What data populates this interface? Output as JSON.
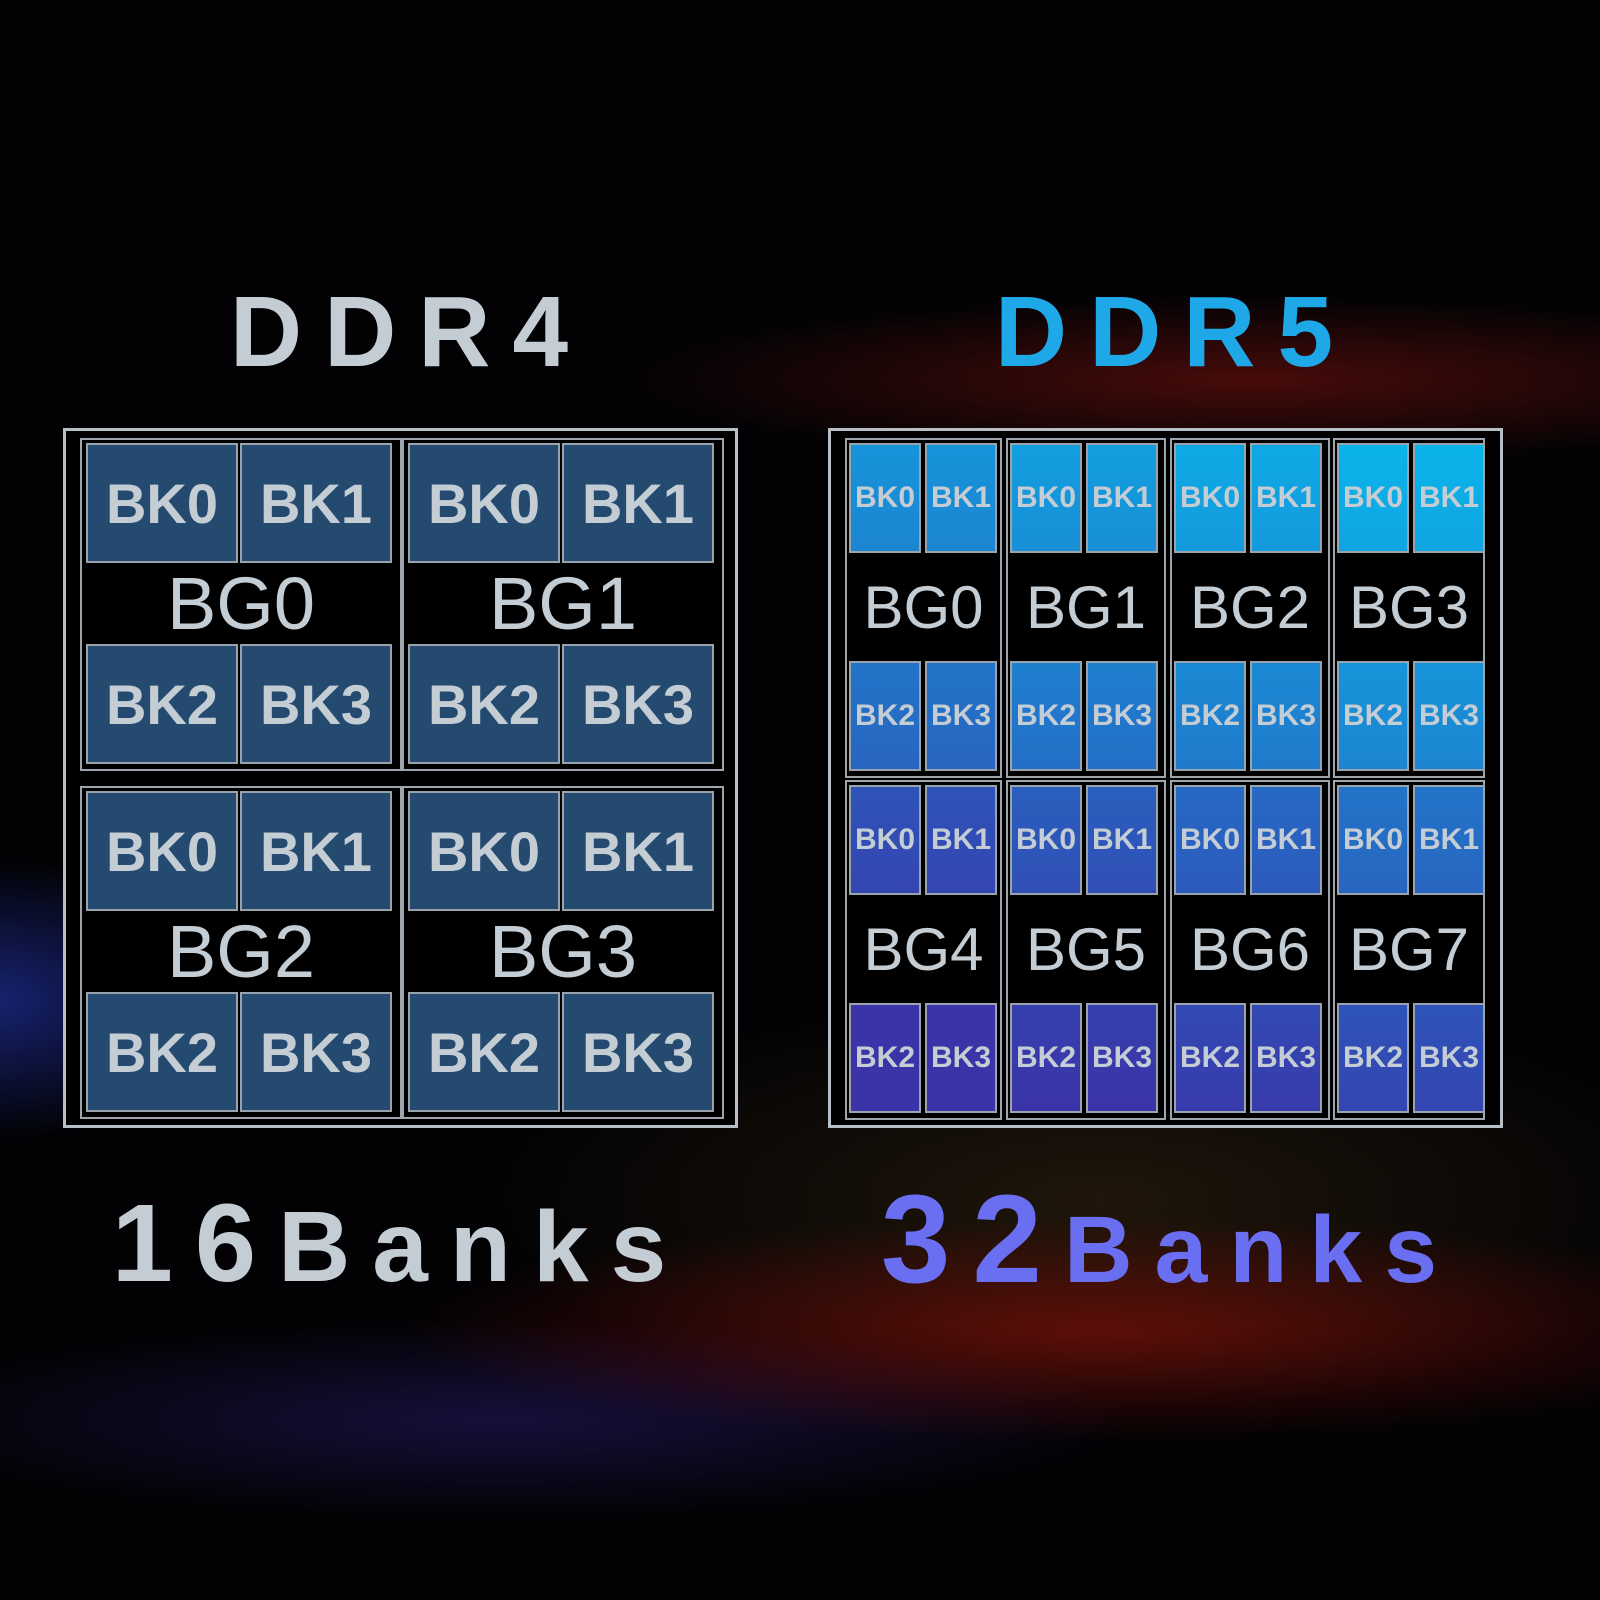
{
  "ddr4": {
    "title": "DDR4",
    "title_color": "#c4ccd4",
    "footer_number": "16",
    "footer_word": "Banks",
    "footer_color": "#c4ccd4",
    "bank_color": "#244a70",
    "groups": [
      {
        "label": "BG0",
        "banks": [
          "BK0",
          "BK1",
          "BK2",
          "BK3"
        ]
      },
      {
        "label": "BG1",
        "banks": [
          "BK0",
          "BK1",
          "BK2",
          "BK3"
        ]
      },
      {
        "label": "BG2",
        "banks": [
          "BK0",
          "BK1",
          "BK2",
          "BK3"
        ]
      },
      {
        "label": "BG3",
        "banks": [
          "BK0",
          "BK1",
          "BK2",
          "BK3"
        ]
      }
    ]
  },
  "ddr5": {
    "title": "DDR5",
    "title_color": "#1ea8e8",
    "footer_number": "32",
    "footer_word": "Banks",
    "footer_color": "#6a6ef0",
    "bank_gradient": [
      "#0ab4ea",
      "#3a34a8"
    ],
    "groups": [
      {
        "label": "BG0",
        "banks": [
          "BK0",
          "BK1",
          "BK2",
          "BK3"
        ]
      },
      {
        "label": "BG1",
        "banks": [
          "BK0",
          "BK1",
          "BK2",
          "BK3"
        ]
      },
      {
        "label": "BG2",
        "banks": [
          "BK0",
          "BK1",
          "BK2",
          "BK3"
        ]
      },
      {
        "label": "BG3",
        "banks": [
          "BK0",
          "BK1",
          "BK2",
          "BK3"
        ]
      },
      {
        "label": "BG4",
        "banks": [
          "BK0",
          "BK1",
          "BK2",
          "BK3"
        ]
      },
      {
        "label": "BG5",
        "banks": [
          "BK0",
          "BK1",
          "BK2",
          "BK3"
        ]
      },
      {
        "label": "BG6",
        "banks": [
          "BK0",
          "BK1",
          "BK2",
          "BK3"
        ]
      },
      {
        "label": "BG7",
        "banks": [
          "BK0",
          "BK1",
          "BK2",
          "BK3"
        ]
      }
    ]
  }
}
